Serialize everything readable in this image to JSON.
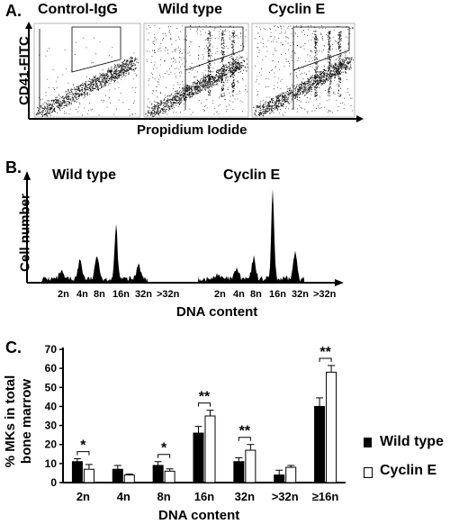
{
  "panel_a": {
    "label": "A.",
    "plot_titles": [
      "Control-IgG",
      "Wild type",
      "Cyclin E"
    ],
    "ylabel": "CD41-FITC",
    "xlabel": "Propidium Iodide"
  },
  "panel_b": {
    "label": "B.",
    "titles": [
      "Wild type",
      "Cyclin E"
    ],
    "ylabel": "Cell number",
    "xlabel": "DNA content",
    "ticks": [
      "2n",
      "4n",
      "8n",
      "16n",
      "32n",
      ">32n"
    ]
  },
  "panel_c": {
    "label": "C.",
    "ylabel_line1": "% MKs in total",
    "ylabel_line2": "bone marrow",
    "xlabel": "DNA content"
  },
  "legend": {
    "wild_type": "Wild type",
    "cyclin_e": "Cyclin E"
  },
  "colors": {
    "wild_type": "#000000",
    "cyclin_e": "#ffffff"
  },
  "chart_data": [
    {
      "type": "scatter",
      "panel": "A",
      "description_visible": "Three flow cytometry dot plots of CD41-FITC vs Propidium Iodide",
      "titles": [
        "Control-IgG",
        "Wild type",
        "Cyclin E"
      ],
      "xlabel": "Propidium Iodide",
      "ylabel": "CD41-FITC"
    },
    {
      "type": "bar",
      "panel": "B",
      "titles": [
        "Wild type",
        "Cyclin E"
      ],
      "categories": [
        "2n",
        "4n",
        "8n",
        "16n",
        "32n",
        ">32n"
      ],
      "series": [
        {
          "name": "Wild type",
          "values": [
            8,
            22,
            28,
            62,
            18,
            4
          ]
        },
        {
          "name": "Cyclin E",
          "values": [
            6,
            12,
            24,
            100,
            30,
            6
          ]
        }
      ],
      "xlabel": "DNA content",
      "ylabel": "Cell number"
    },
    {
      "type": "bar",
      "panel": "C",
      "categories": [
        "2n",
        "4n",
        "8n",
        "16n",
        "32n",
        ">32n",
        "≥16n"
      ],
      "series": [
        {
          "name": "Wild type",
          "values": [
            11,
            7,
            9,
            26,
            11,
            4,
            40
          ],
          "errors": [
            1.5,
            2,
            2,
            3.5,
            2,
            2.5,
            4.5
          ]
        },
        {
          "name": "Cyclin E",
          "values": [
            7,
            4,
            6,
            35,
            17,
            8,
            58
          ],
          "errors": [
            2.5,
            0.5,
            1.2,
            3,
            3,
            1,
            3.5
          ]
        }
      ],
      "significance": [
        "*",
        "",
        "*",
        "**",
        "**",
        "",
        "**"
      ],
      "yticks": [
        "0",
        "10",
        "20",
        "30",
        "40",
        "50",
        "60",
        "70"
      ],
      "ylim": [
        0,
        70
      ],
      "xlabel": "DNA content",
      "ylabel": "% MKs in total bone marrow"
    }
  ]
}
